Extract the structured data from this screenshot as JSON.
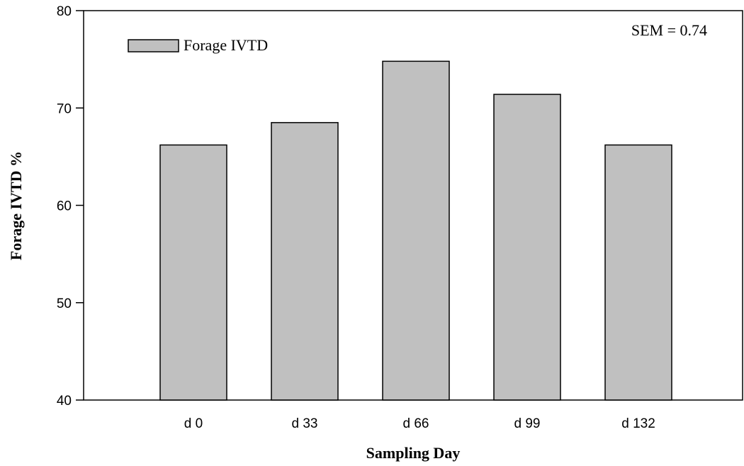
{
  "chart_data": {
    "type": "bar",
    "title": "",
    "xlabel": "Sampling Day",
    "ylabel": "Forage IVTD %",
    "ylim": [
      40,
      80
    ],
    "yticks": [
      40,
      50,
      60,
      70,
      80
    ],
    "grid": false,
    "legend_position": "top-left",
    "categories": [
      "d 0",
      "d 33",
      "d 66",
      "d 99",
      "d 132"
    ],
    "series": [
      {
        "name": "Forage IVTD",
        "color": "#c0c0c0",
        "values": [
          66.2,
          68.5,
          74.8,
          71.4,
          66.2
        ]
      }
    ],
    "annotations": [
      {
        "text": "SEM = 0.74"
      }
    ]
  }
}
